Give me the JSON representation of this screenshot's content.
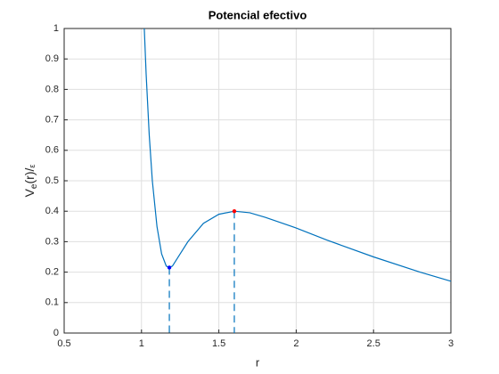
{
  "chart_data": {
    "type": "line",
    "title": "Potencial efectivo",
    "xlabel": "r",
    "ylabel": {
      "main": "V",
      "sub": "e",
      "after": "(r)/",
      "small": "ε"
    },
    "series": [
      {
        "color": "#0072bd",
        "x": [
          1.018,
          1.03,
          1.05,
          1.07,
          1.1,
          1.13,
          1.16,
          1.18,
          1.2,
          1.25,
          1.3,
          1.4,
          1.5,
          1.6,
          1.7,
          1.8,
          2.0,
          2.2,
          2.5,
          2.8,
          3.0
        ],
        "values": [
          1.0,
          0.85,
          0.65,
          0.5,
          0.35,
          0.26,
          0.22,
          0.215,
          0.22,
          0.26,
          0.3,
          0.36,
          0.39,
          0.4,
          0.395,
          0.38,
          0.345,
          0.305,
          0.25,
          0.2,
          0.17
        ]
      }
    ],
    "points": [
      {
        "x": 1.18,
        "y": 0.215,
        "color": "#0000ff"
      },
      {
        "x": 1.6,
        "y": 0.4,
        "color": "#ff0000"
      }
    ],
    "dash_color": "#0072bd",
    "xlim": [
      0.5,
      3
    ],
    "xticks": [
      0.5,
      1,
      1.5,
      2,
      2.5,
      3
    ],
    "ylim": [
      0,
      1
    ],
    "yticks": [
      0,
      0.1,
      0.2,
      0.3,
      0.4,
      0.5,
      0.6,
      0.7,
      0.8,
      0.9,
      1
    ],
    "grid": true
  }
}
